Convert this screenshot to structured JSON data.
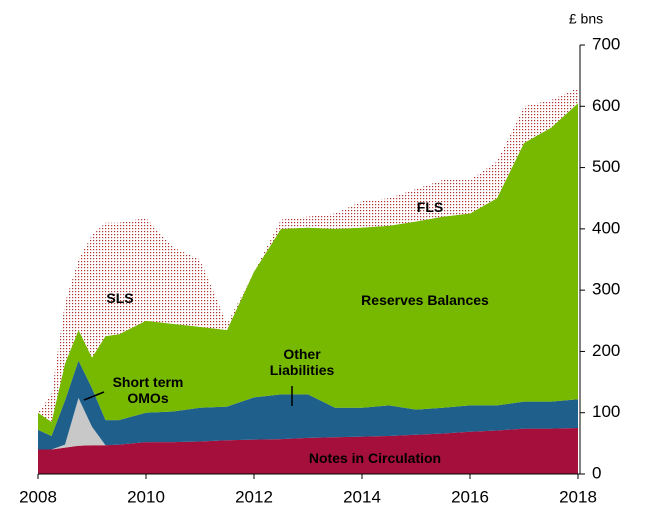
{
  "chart_data": {
    "type": "stacked_area",
    "y_unit_label": "£ bns",
    "x": [
      2008,
      2008.25,
      2008.5,
      2008.75,
      2009,
      2009.25,
      2009.5,
      2010,
      2010.5,
      2011,
      2011.5,
      2012,
      2012.5,
      2013,
      2013.5,
      2014,
      2014.5,
      2015,
      2015.5,
      2016,
      2016.5,
      2017,
      2017.5,
      2018
    ],
    "series": [
      {
        "name": "Notes in Circulation",
        "color": "#a50f3c",
        "values": [
          40,
          40,
          43,
          46,
          47,
          47,
          48,
          52,
          52,
          53,
          55,
          56,
          57,
          59,
          60,
          61,
          62,
          64,
          66,
          69,
          71,
          74,
          74,
          75
        ]
      },
      {
        "name": "Short term OMOs",
        "color": "#c8c8c8",
        "values": [
          0,
          0,
          5,
          78,
          30,
          0,
          0,
          0,
          0,
          0,
          0,
          0,
          0,
          0,
          0,
          0,
          0,
          0,
          0,
          0,
          0,
          0,
          0,
          0
        ]
      },
      {
        "name": "Other Liabilities",
        "color": "#1f5f8b",
        "values": [
          32,
          22,
          72,
          61,
          63,
          41,
          40,
          48,
          50,
          55,
          55,
          69,
          73,
          71,
          48,
          47,
          50,
          41,
          42,
          43,
          41,
          44,
          44,
          47
        ]
      },
      {
        "name": "Reserves Balances",
        "color": "#76b900",
        "values": [
          28,
          23,
          60,
          50,
          50,
          137,
          140,
          150,
          143,
          132,
          125,
          205,
          270,
          272,
          292,
          294,
          293,
          307,
          312,
          313,
          338,
          422,
          447,
          483
        ]
      },
      {
        "name": "SLS",
        "color": "#b03030",
        "pattern": "dots",
        "values": [
          0,
          45,
          100,
          115,
          200,
          185,
          182,
          168,
          125,
          110,
          10,
          0,
          0,
          0,
          0,
          0,
          0,
          0,
          0,
          0,
          0,
          0,
          0,
          0
        ]
      },
      {
        "name": "FLS",
        "color": "#b03030",
        "pattern": "dots",
        "values": [
          0,
          0,
          0,
          0,
          0,
          0,
          0,
          0,
          0,
          0,
          0,
          0,
          15,
          18,
          25,
          43,
          45,
          53,
          60,
          55,
          60,
          60,
          45,
          25
        ]
      }
    ],
    "xlim": [
      2008,
      2018
    ],
    "xticks": [
      2008,
      2010,
      2012,
      2014,
      2016,
      2018
    ],
    "ylim": [
      0,
      700
    ],
    "yticks": [
      0,
      100,
      200,
      300,
      400,
      500,
      600,
      700
    ],
    "y_axis_side": "right",
    "grid": false
  }
}
